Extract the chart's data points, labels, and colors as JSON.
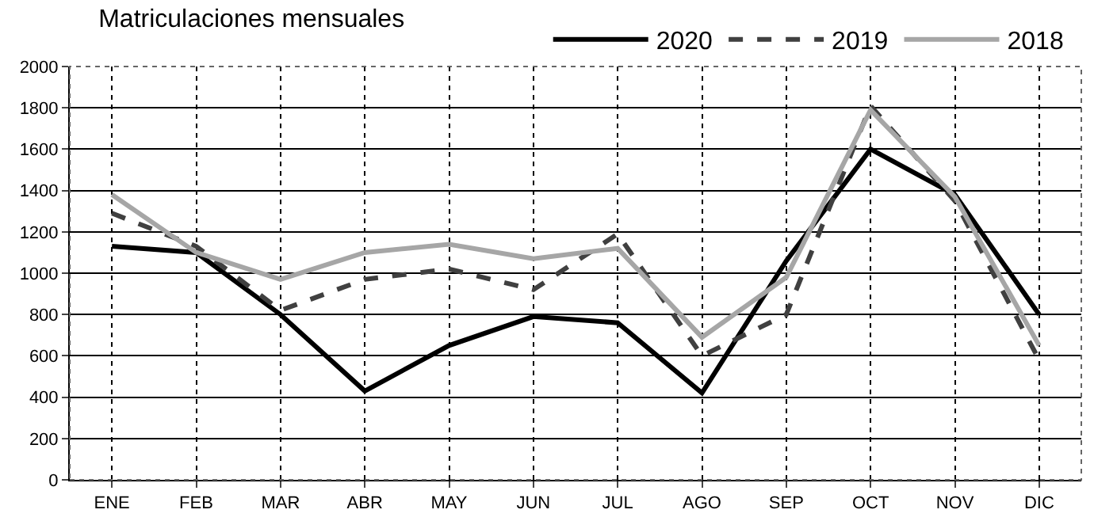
{
  "chart_data": {
    "type": "line",
    "title": "Matriculaciones mensuales",
    "categories": [
      "ENE",
      "FEB",
      "MAR",
      "ABR",
      "MAY",
      "JUN",
      "JUL",
      "AGO",
      "SEP",
      "OCT",
      "NOV",
      "DIC"
    ],
    "series": [
      {
        "name": "2020",
        "color": "#000000",
        "line_style": "solid",
        "values": [
          1130,
          1100,
          800,
          430,
          650,
          790,
          760,
          420,
          1060,
          1600,
          1380,
          800
        ]
      },
      {
        "name": "2019",
        "color": "#404040",
        "line_style": "dashed",
        "values": [
          1290,
          1130,
          820,
          970,
          1020,
          920,
          1190,
          600,
          800,
          1810,
          1350,
          580
        ]
      },
      {
        "name": "2018",
        "color": "#a6a6a6",
        "line_style": "solid",
        "values": [
          1380,
          1100,
          970,
          1100,
          1140,
          1070,
          1120,
          690,
          980,
          1790,
          1370,
          650
        ]
      }
    ],
    "ylim": [
      0,
      2000
    ],
    "yticks": [
      0,
      200,
      400,
      600,
      800,
      1000,
      1200,
      1400,
      1600,
      1800,
      2000
    ],
    "grid": true,
    "legend": "top",
    "marker": "none"
  }
}
